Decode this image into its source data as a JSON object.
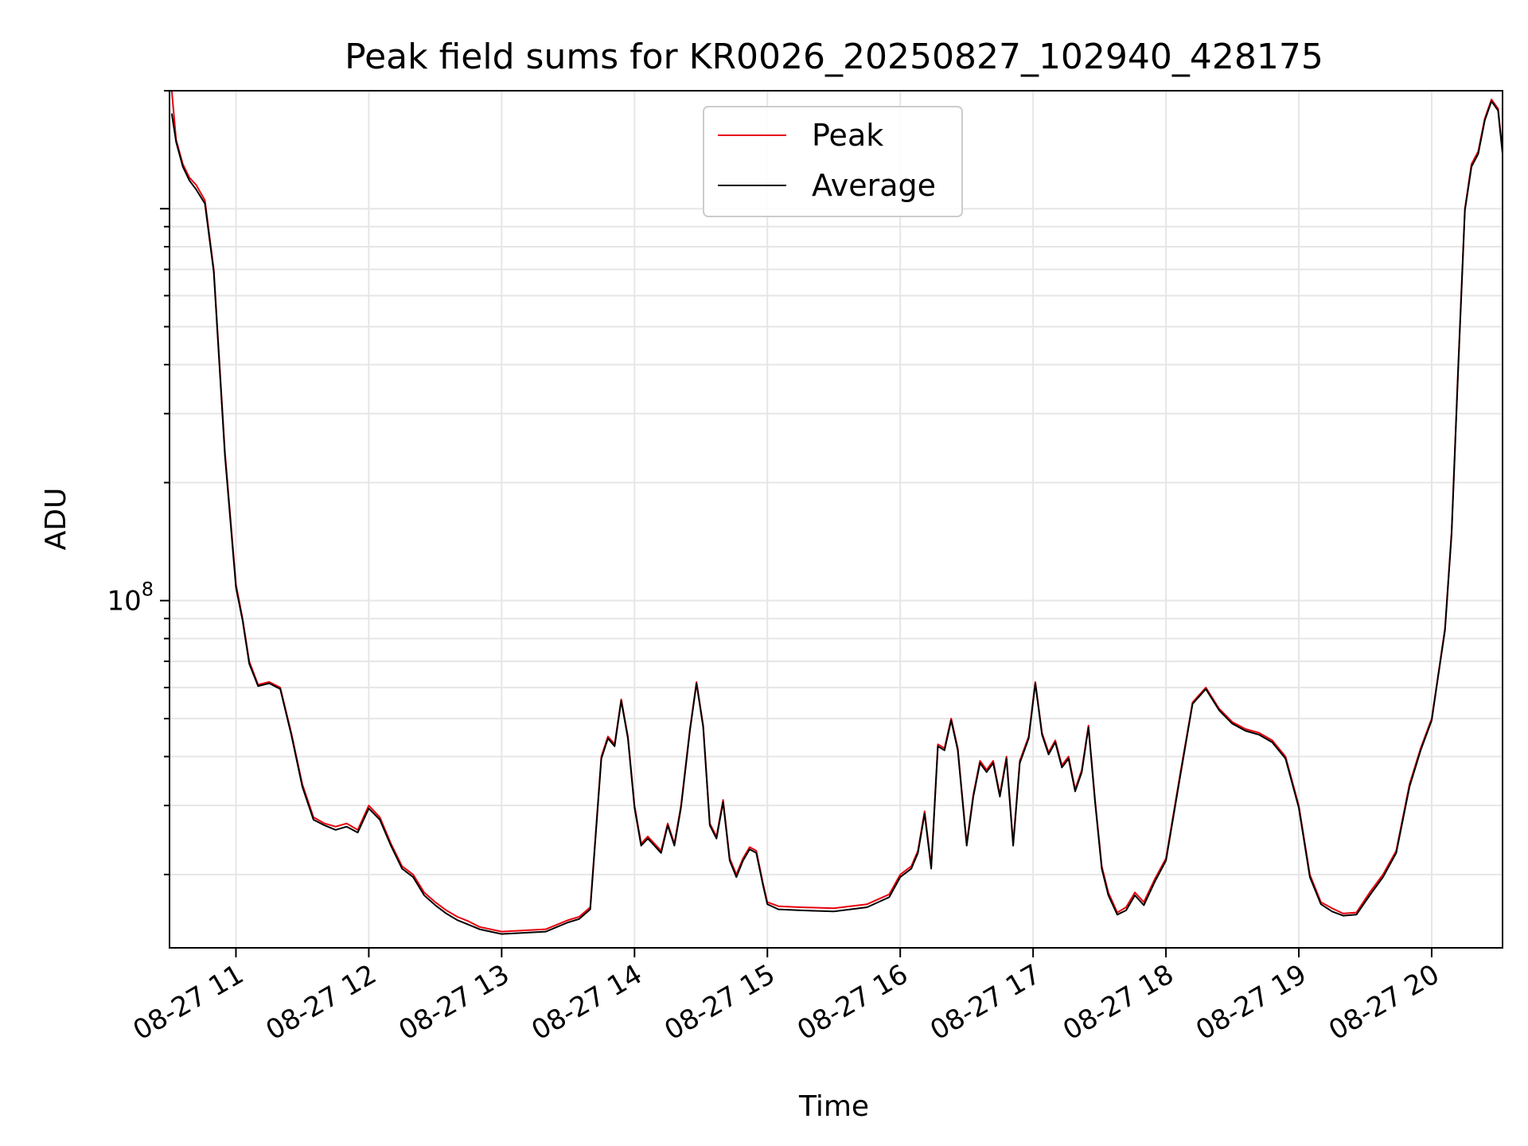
{
  "chart_data": {
    "type": "line",
    "title": "Peak field sums for KR0026_20250827_102940_428175",
    "xlabel": "Time",
    "ylabel": "ADU",
    "yscale": "log",
    "xlim": [
      "08-27 10:30",
      "08-27 20:32"
    ],
    "ylim": [
      13000000,
      2000000000
    ],
    "x_ticks": [
      "08-27 11",
      "08-27 12",
      "08-27 13",
      "08-27 14",
      "08-27 15",
      "08-27 16",
      "08-27 17",
      "08-27 18",
      "08-27 19",
      "08-27 20"
    ],
    "y_ticks": [
      {
        "base": "10",
        "exp": "8"
      }
    ],
    "grid": true,
    "legend": {
      "position": "top-center"
    },
    "colors": {
      "peak": "#e8000b",
      "average": "#000000"
    },
    "x": [
      "08-27 10:31",
      "08-27 10:33",
      "08-27 10:36",
      "08-27 10:39",
      "08-27 10:42",
      "08-27 10:46",
      "08-27 10:50",
      "08-27 10:55",
      "08-27 11:00",
      "08-27 11:03",
      "08-27 11:06",
      "08-27 11:10",
      "08-27 11:15",
      "08-27 11:20",
      "08-27 11:25",
      "08-27 11:30",
      "08-27 11:35",
      "08-27 11:40",
      "08-27 11:45",
      "08-27 11:50",
      "08-27 11:55",
      "08-27 12:00",
      "08-27 12:05",
      "08-27 12:10",
      "08-27 12:15",
      "08-27 12:20",
      "08-27 12:25",
      "08-27 12:30",
      "08-27 12:35",
      "08-27 12:40",
      "08-27 12:45",
      "08-27 12:50",
      "08-27 12:55",
      "08-27 13:00",
      "08-27 13:10",
      "08-27 13:20",
      "08-27 13:30",
      "08-27 13:35",
      "08-27 13:40",
      "08-27 13:45",
      "08-27 13:48",
      "08-27 13:51",
      "08-27 13:54",
      "08-27 13:57",
      "08-27 14:00",
      "08-27 14:03",
      "08-27 14:06",
      "08-27 14:09",
      "08-27 14:12",
      "08-27 14:15",
      "08-27 14:18",
      "08-27 14:21",
      "08-27 14:25",
      "08-27 14:28",
      "08-27 14:31",
      "08-27 14:34",
      "08-27 14:37",
      "08-27 14:40",
      "08-27 14:43",
      "08-27 14:46",
      "08-27 14:49",
      "08-27 14:52",
      "08-27 14:55",
      "08-27 14:58",
      "08-27 15:00",
      "08-27 15:05",
      "08-27 15:15",
      "08-27 15:30",
      "08-27 15:45",
      "08-27 15:55",
      "08-27 16:00",
      "08-27 16:05",
      "08-27 16:08",
      "08-27 16:11",
      "08-27 16:14",
      "08-27 16:17",
      "08-27 16:20",
      "08-27 16:23",
      "08-27 16:26",
      "08-27 16:30",
      "08-27 16:33",
      "08-27 16:36",
      "08-27 16:39",
      "08-27 16:42",
      "08-27 16:45",
      "08-27 16:48",
      "08-27 16:51",
      "08-27 16:54",
      "08-27 16:58",
      "08-27 17:01",
      "08-27 17:04",
      "08-27 17:07",
      "08-27 17:10",
      "08-27 17:13",
      "08-27 17:16",
      "08-27 17:19",
      "08-27 17:22",
      "08-27 17:25",
      "08-27 17:28",
      "08-27 17:31",
      "08-27 17:34",
      "08-27 17:38",
      "08-27 17:42",
      "08-27 17:46",
      "08-27 17:50",
      "08-27 17:55",
      "08-27 18:00",
      "08-27 18:06",
      "08-27 18:12",
      "08-27 18:18",
      "08-27 18:24",
      "08-27 18:30",
      "08-27 18:36",
      "08-27 18:42",
      "08-27 18:48",
      "08-27 18:54",
      "08-27 19:00",
      "08-27 19:05",
      "08-27 19:10",
      "08-27 19:15",
      "08-27 19:20",
      "08-27 19:26",
      "08-27 19:32",
      "08-27 19:38",
      "08-27 19:44",
      "08-27 19:50",
      "08-27 19:55",
      "08-27 20:00",
      "08-27 20:03",
      "08-27 20:06",
      "08-27 20:09",
      "08-27 20:12",
      "08-27 20:15",
      "08-27 20:18",
      "08-27 20:21",
      "08-27 20:24",
      "08-27 20:27",
      "08-27 20:30",
      "08-27 20:32"
    ],
    "series": [
      {
        "name": "Peak",
        "values": [
          2000000000,
          1500000000,
          1300000000,
          1200000000,
          1150000000,
          1050000000,
          700000000,
          240000000,
          110000000,
          90000000,
          70000000,
          61000000,
          62000000,
          60000000,
          46000000,
          34000000,
          28000000,
          27000000,
          26500000,
          27000000,
          26000000,
          30000000,
          28000000,
          24000000,
          21000000,
          20000000,
          18000000,
          17000000,
          16200000,
          15600000,
          15200000,
          14700000,
          14500000,
          14300000,
          14400000,
          14500000,
          15300000,
          15600000,
          16500000,
          40000000,
          45000000,
          43000000,
          56000000,
          45000000,
          30000000,
          24000000,
          25000000,
          24000000,
          23000000,
          27000000,
          24000000,
          30000000,
          47000000,
          62000000,
          48000000,
          27000000,
          25000000,
          31000000,
          22000000,
          20000000,
          22000000,
          23500000,
          23000000,
          19000000,
          17000000,
          16600000,
          16500000,
          16400000,
          16800000,
          17800000,
          20000000,
          21000000,
          23000000,
          29000000,
          21000000,
          43000000,
          42000000,
          50000000,
          42000000,
          24000000,
          32000000,
          39000000,
          37000000,
          39000000,
          32000000,
          40000000,
          24000000,
          39000000,
          45000000,
          62000000,
          46000000,
          41000000,
          44000000,
          38000000,
          40000000,
          33000000,
          37000000,
          48000000,
          31000000,
          21000000,
          18000000,
          16000000,
          16500000,
          18000000,
          17000000,
          19500000,
          22000000,
          35000000,
          55000000,
          60000000,
          53000000,
          49000000,
          47000000,
          46000000,
          44000000,
          40000000,
          30000000,
          20000000,
          17000000,
          16400000,
          15900000,
          16000000,
          18000000,
          20000000,
          23000000,
          34000000,
          42000000,
          50000000,
          65000000,
          85000000,
          150000000,
          400000000,
          1000000000,
          1300000000,
          1400000000,
          1700000000,
          1900000000,
          1800000000,
          1400000000
        ]
      },
      {
        "name": "Average",
        "values": [
          1750000000,
          1480000000,
          1280000000,
          1180000000,
          1120000000,
          1030000000,
          690000000,
          235000000,
          108000000,
          89000000,
          69000000,
          60500000,
          61500000,
          59500000,
          45500000,
          33500000,
          27600000,
          26700000,
          26000000,
          26500000,
          25600000,
          29500000,
          27600000,
          23700000,
          20700000,
          19700000,
          17700000,
          16700000,
          15900000,
          15300000,
          14900000,
          14500000,
          14300000,
          14100000,
          14200000,
          14300000,
          15100000,
          15400000,
          16300000,
          39500000,
          44500000,
          42500000,
          55500000,
          44500000,
          29600000,
          23700000,
          24700000,
          23700000,
          22700000,
          26700000,
          23700000,
          29600000,
          46500000,
          61500000,
          47500000,
          26700000,
          24700000,
          30600000,
          21700000,
          19700000,
          21700000,
          23200000,
          22700000,
          18800000,
          16800000,
          16300000,
          16200000,
          16100000,
          16500000,
          17500000,
          19700000,
          20700000,
          22700000,
          28600000,
          20700000,
          42500000,
          41500000,
          49500000,
          41500000,
          23700000,
          31600000,
          38500000,
          36500000,
          38500000,
          31600000,
          39500000,
          23700000,
          38500000,
          44500000,
          61500000,
          45500000,
          40500000,
          43500000,
          37500000,
          39500000,
          32600000,
          36500000,
          47500000,
          30600000,
          20700000,
          17700000,
          15800000,
          16200000,
          17700000,
          16700000,
          19200000,
          21700000,
          34500000,
          54500000,
          59500000,
          52500000,
          48500000,
          46500000,
          45500000,
          43500000,
          39500000,
          29600000,
          19700000,
          16800000,
          16100000,
          15700000,
          15800000,
          17700000,
          19700000,
          22700000,
          33500000,
          41500000,
          49500000,
          64500000,
          84000000,
          148000000,
          395000000,
          990000000,
          1280000000,
          1380000000,
          1680000000,
          1880000000,
          1780000000,
          1380000000
        ]
      }
    ]
  }
}
